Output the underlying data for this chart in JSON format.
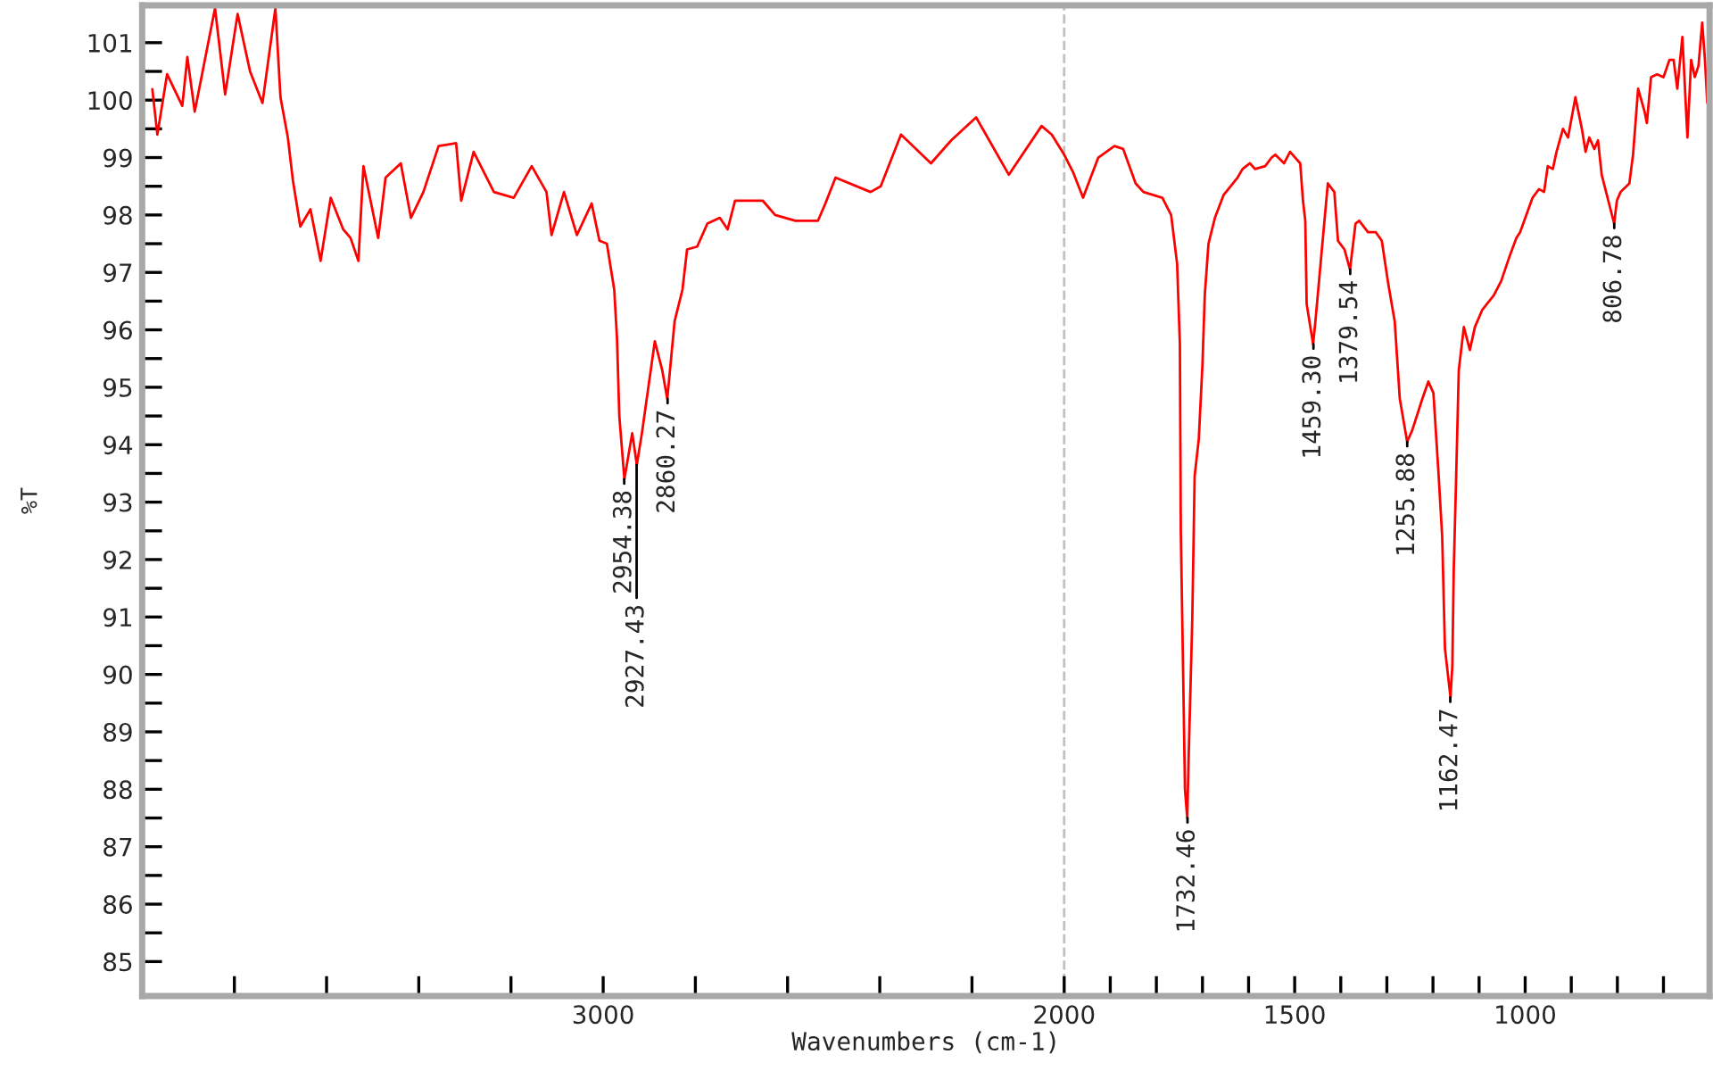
{
  "chart_data": {
    "type": "line",
    "xlabel": "Wavenumbers (cm-1)",
    "ylabel": "%T",
    "xlim": [
      4000,
      600
    ],
    "ylim": [
      84.4,
      101.65
    ],
    "xticks": [
      {
        "value": 3800,
        "label": null
      },
      {
        "value": 3600,
        "label": null
      },
      {
        "value": 3400,
        "label": null
      },
      {
        "value": 3200,
        "label": null
      },
      3000,
      {
        "value": 2800,
        "label": null
      },
      {
        "value": 2600,
        "label": null
      },
      {
        "value": 2400,
        "label": null
      },
      {
        "value": 2200,
        "label": null
      },
      2000,
      {
        "value": 1900,
        "label": null
      },
      {
        "value": 1800,
        "label": null
      },
      {
        "value": 1700,
        "label": null
      },
      {
        "value": 1600,
        "label": null
      },
      1500,
      {
        "value": 1400,
        "label": null
      },
      {
        "value": 1300,
        "label": null
      },
      {
        "value": 1200,
        "label": null
      },
      {
        "value": 1100,
        "label": null
      },
      1000,
      {
        "value": 900,
        "label": null
      },
      {
        "value": 800,
        "label": null
      },
      {
        "value": 700,
        "label": null
      }
    ],
    "yticks": [
      85,
      {
        "value": 85.5,
        "label": null
      },
      86,
      {
        "value": 86.5,
        "label": null
      },
      87,
      {
        "value": 87.5,
        "label": null
      },
      88,
      {
        "value": 88.5,
        "label": null
      },
      89,
      {
        "value": 89.5,
        "label": null
      },
      90,
      {
        "value": 90.5,
        "label": null
      },
      91,
      {
        "value": 91.5,
        "label": null
      },
      92,
      {
        "value": 92.5,
        "label": null
      },
      93,
      {
        "value": 93.5,
        "label": null
      },
      94,
      {
        "value": 94.5,
        "label": null
      },
      95,
      {
        "value": 95.5,
        "label": null
      },
      96,
      {
        "value": 96.5,
        "label": null
      },
      97,
      {
        "value": 97.5,
        "label": null
      },
      98,
      {
        "value": 98.5,
        "label": null
      },
      99,
      {
        "value": 99.5,
        "label": null
      },
      100,
      {
        "value": 100.5,
        "label": null
      },
      101
    ],
    "grid": false,
    "legend": false,
    "line_style": "solid",
    "marker": "none",
    "ref_lines": [
      {
        "axis": "x",
        "value": 2000,
        "color": "#c0c0c0",
        "line_style": "dashed"
      }
    ],
    "series": [
      {
        "color": "#ff0000",
        "x": [
          3978,
          3967,
          3946,
          3913,
          3902,
          3886,
          3842,
          3820,
          3793,
          3766,
          3739,
          3711,
          3700,
          3684,
          3673,
          3657,
          3635,
          3613,
          3591,
          3564,
          3548,
          3531,
          3520,
          3488,
          3472,
          3439,
          3417,
          3390,
          3357,
          3319,
          3308,
          3281,
          3237,
          3194,
          3155,
          3123,
          3112,
          3085,
          3057,
          3025,
          3008,
          2992,
          2976,
          2970,
          2965,
          2954,
          2937,
          2927,
          2916,
          2888,
          2872,
          2861,
          2845,
          2828,
          2818,
          2796,
          2774,
          2747,
          2730,
          2714,
          2654,
          2627,
          2583,
          2534,
          2518,
          2496,
          2420,
          2398,
          2354,
          2289,
          2245,
          2191,
          2120,
          2049,
          2027,
          2000,
          1981,
          1959,
          1926,
          1891,
          1872,
          1845,
          1828,
          1787,
          1768,
          1755,
          1749,
          1747,
          1741,
          1738,
          1733,
          1730,
          1722,
          1717,
          1708,
          1700,
          1695,
          1687,
          1673,
          1654,
          1624,
          1613,
          1597,
          1586,
          1564,
          1550,
          1542,
          1523,
          1510,
          1488,
          1482,
          1477,
          1474,
          1460,
          1455,
          1441,
          1428,
          1414,
          1406,
          1392,
          1380,
          1368,
          1360,
          1341,
          1324,
          1311,
          1297,
          1283,
          1272,
          1256,
          1245,
          1223,
          1210,
          1199,
          1188,
          1180,
          1174,
          1162,
          1158,
          1155,
          1150,
          1144,
          1133,
          1120,
          1109,
          1093,
          1068,
          1052,
          1033,
          1019,
          1011,
          984,
          970,
          959,
          951,
          940,
          932,
          918,
          907,
          891,
          877,
          869,
          861,
          850,
          842,
          834,
          807,
          801,
          793,
          774,
          766,
          755,
          741,
          736,
          727,
          714,
          700,
          687,
          678,
          670,
          659,
          648,
          640,
          632,
          624,
          616,
          610,
          605
        ],
        "values": [
          100.19,
          99.4,
          100.45,
          99.9,
          100.75,
          99.8,
          101.6,
          100.1,
          101.5,
          100.5,
          99.95,
          101.6,
          100.05,
          99.35,
          98.6,
          97.8,
          98.1,
          97.2,
          98.3,
          97.75,
          97.6,
          97.2,
          98.85,
          97.6,
          98.65,
          98.9,
          97.95,
          98.4,
          99.2,
          99.25,
          98.25,
          99.1,
          98.4,
          98.3,
          98.85,
          98.4,
          97.65,
          98.4,
          97.65,
          98.2,
          97.55,
          97.5,
          96.7,
          95.85,
          94.5,
          93.4,
          94.2,
          93.65,
          94.2,
          95.8,
          95.3,
          94.8,
          96.15,
          96.7,
          97.4,
          97.45,
          97.85,
          97.95,
          97.75,
          98.25,
          98.25,
          98.0,
          97.9,
          97.9,
          98.2,
          98.65,
          98.4,
          98.5,
          99.4,
          98.9,
          99.3,
          99.7,
          98.7,
          99.55,
          99.4,
          99.05,
          98.75,
          98.3,
          99.0,
          99.2,
          99.15,
          98.55,
          98.4,
          98.3,
          98.0,
          97.15,
          95.75,
          92.5,
          89.55,
          88.0,
          87.5,
          88.55,
          91.0,
          93.45,
          94.1,
          95.4,
          96.6,
          97.5,
          97.95,
          98.35,
          98.65,
          98.8,
          98.9,
          98.8,
          98.85,
          99.0,
          99.05,
          98.9,
          99.1,
          98.9,
          98.25,
          97.9,
          96.45,
          95.75,
          96.15,
          97.4,
          98.55,
          98.4,
          97.55,
          97.4,
          97.05,
          97.85,
          97.9,
          97.7,
          97.7,
          97.55,
          96.8,
          96.15,
          94.8,
          94.05,
          94.25,
          94.8,
          95.1,
          94.9,
          93.5,
          92.4,
          90.45,
          89.6,
          90.15,
          91.8,
          93.35,
          95.3,
          96.05,
          95.65,
          96.05,
          96.35,
          96.6,
          96.85,
          97.3,
          97.6,
          97.7,
          98.3,
          98.45,
          98.4,
          98.85,
          98.8,
          99.1,
          99.5,
          99.35,
          100.05,
          99.5,
          99.1,
          99.35,
          99.15,
          99.3,
          98.7,
          97.85,
          98.25,
          98.4,
          98.55,
          99.05,
          100.2,
          99.8,
          99.6,
          100.4,
          100.45,
          100.4,
          100.7,
          100.7,
          100.2,
          101.1,
          99.35,
          100.7,
          100.4,
          100.6,
          101.35,
          100.7,
          99.95
        ]
      }
    ],
    "annotations": [
      {
        "text": "2954.38",
        "x": 2954.38,
        "y": 93.4
      },
      {
        "text": "2927.43",
        "x": 2927.43,
        "y": 93.65
      },
      {
        "text": "2860.27",
        "x": 2860.27,
        "y": 94.8
      },
      {
        "text": "1732.46",
        "x": 1732.46,
        "y": 87.5
      },
      {
        "text": "1459.30",
        "x": 1459.3,
        "y": 95.75
      },
      {
        "text": "1379.54",
        "x": 1379.54,
        "y": 97.05
      },
      {
        "text": "1255.88",
        "x": 1255.88,
        "y": 94.05
      },
      {
        "text": "1162.47",
        "x": 1162.47,
        "y": 89.6
      },
      {
        "text": "806.78",
        "x": 806.78,
        "y": 97.85
      }
    ]
  }
}
